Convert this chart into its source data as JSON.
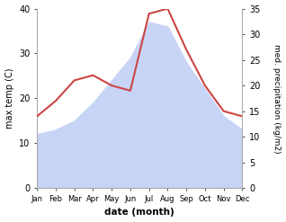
{
  "months": [
    "Jan",
    "Feb",
    "Mar",
    "Apr",
    "May",
    "Jun",
    "Jul",
    "Aug",
    "Sep",
    "Oct",
    "Nov",
    "Dec"
  ],
  "max_temp": [
    12,
    13,
    15,
    19,
    24,
    29,
    37,
    36,
    28,
    22,
    16,
    13
  ],
  "precipitation": [
    14,
    17,
    21,
    22,
    20,
    19,
    34,
    35,
    27,
    20,
    15,
    14
  ],
  "temp_ylim": [
    0,
    40
  ],
  "precip_ylim": [
    0,
    35
  ],
  "temp_color": "#c8d4f5",
  "precip_color": "#cc4444",
  "xlabel": "date (month)",
  "ylabel_left": "max temp (C)",
  "ylabel_right": "med. precipitation (kg/m2)",
  "bg_color": "#ffffff"
}
